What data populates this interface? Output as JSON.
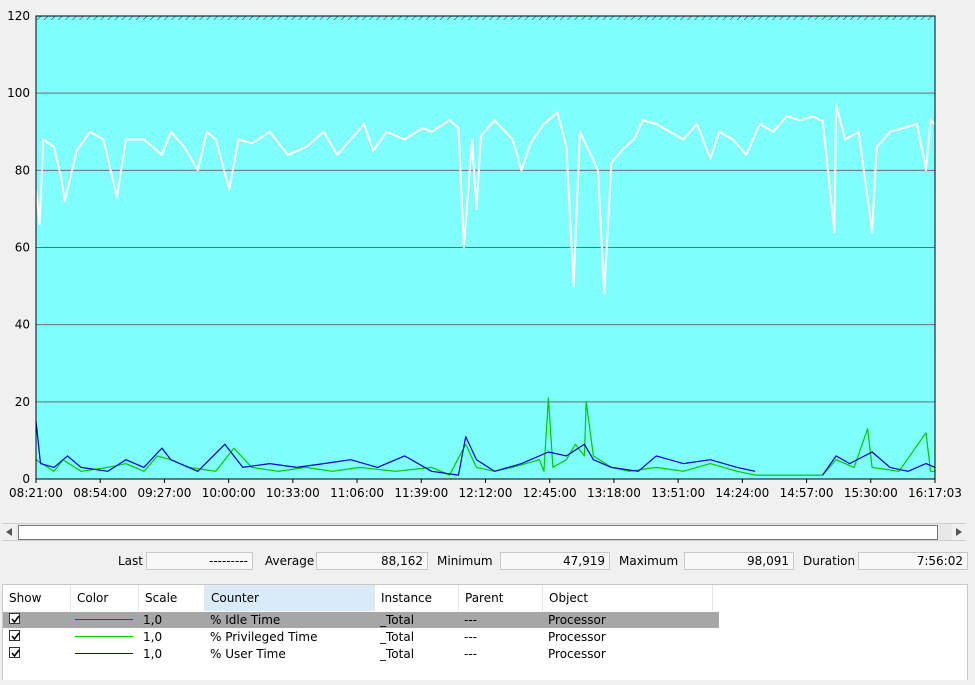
{
  "chart_data": {
    "type": "line",
    "ylim": [
      0,
      120
    ],
    "y_ticks": [
      "0",
      "20",
      "40",
      "60",
      "80",
      "100",
      "120"
    ],
    "x_ticks": [
      "08:21:00",
      "08:54:00",
      "09:27:00",
      "10:00:00",
      "10:33:00",
      "11:06:00",
      "11:39:00",
      "12:12:00",
      "12:45:00",
      "13:18:00",
      "13:51:00",
      "14:24:00",
      "14:57:00",
      "15:30:00",
      "16:17:03"
    ],
    "x_range": [
      "08:21:00",
      "16:17:03"
    ],
    "background": "#80ffff",
    "grid": true,
    "series": [
      {
        "name": "% Idle Time",
        "color": "#ffffff",
        "points": [
          [
            0,
            75
          ],
          [
            0.004,
            66
          ],
          [
            0.008,
            88
          ],
          [
            0.02,
            86
          ],
          [
            0.028,
            78
          ],
          [
            0.032,
            72
          ],
          [
            0.045,
            85
          ],
          [
            0.06,
            90
          ],
          [
            0.075,
            88
          ],
          [
            0.09,
            73
          ],
          [
            0.1,
            88
          ],
          [
            0.12,
            88
          ],
          [
            0.14,
            84
          ],
          [
            0.15,
            90
          ],
          [
            0.165,
            86
          ],
          [
            0.18,
            80
          ],
          [
            0.19,
            90
          ],
          [
            0.2,
            88
          ],
          [
            0.215,
            75
          ],
          [
            0.225,
            88
          ],
          [
            0.24,
            87
          ],
          [
            0.26,
            90
          ],
          [
            0.28,
            84
          ],
          [
            0.3,
            86
          ],
          [
            0.32,
            90
          ],
          [
            0.335,
            84
          ],
          [
            0.35,
            88
          ],
          [
            0.365,
            92
          ],
          [
            0.375,
            85
          ],
          [
            0.39,
            90
          ],
          [
            0.41,
            88
          ],
          [
            0.43,
            91
          ],
          [
            0.44,
            90
          ],
          [
            0.46,
            93
          ],
          [
            0.47,
            91
          ],
          [
            0.476,
            60
          ],
          [
            0.485,
            88
          ],
          [
            0.49,
            70
          ],
          [
            0.495,
            89
          ],
          [
            0.51,
            93
          ],
          [
            0.53,
            88
          ],
          [
            0.54,
            80
          ],
          [
            0.55,
            87
          ],
          [
            0.565,
            92
          ],
          [
            0.58,
            95
          ],
          [
            0.59,
            86
          ],
          [
            0.598,
            50
          ],
          [
            0.605,
            90
          ],
          [
            0.615,
            85
          ],
          [
            0.625,
            80
          ],
          [
            0.632,
            48
          ],
          [
            0.64,
            82
          ],
          [
            0.655,
            86
          ],
          [
            0.665,
            88
          ],
          [
            0.675,
            93
          ],
          [
            0.69,
            92
          ],
          [
            0.705,
            90
          ],
          [
            0.72,
            88
          ],
          [
            0.735,
            92
          ],
          [
            0.75,
            83
          ],
          [
            0.76,
            90
          ],
          [
            0.775,
            88
          ],
          [
            0.79,
            84
          ],
          [
            0.805,
            92
          ],
          [
            0.82,
            90
          ],
          [
            0.835,
            94
          ],
          [
            0.85,
            93
          ],
          [
            0.865,
            94
          ],
          [
            0.872,
            93
          ],
          [
            0.875,
            93
          ],
          [
            0.888,
            64
          ],
          [
            0.89,
            97
          ],
          [
            0.9,
            88
          ],
          [
            0.915,
            90
          ],
          [
            0.93,
            64
          ],
          [
            0.935,
            86
          ],
          [
            0.95,
            90
          ],
          [
            0.965,
            91
          ],
          [
            0.98,
            92
          ],
          [
            0.99,
            80
          ],
          [
            0.995,
            93
          ],
          [
            1,
            92
          ]
        ],
        "gaps": [
          [
            0.465,
            0.47
          ],
          [
            0.875,
            0.888
          ]
        ]
      },
      {
        "name": "% Privileged Time",
        "color": "#00c800",
        "points": [
          [
            0,
            5
          ],
          [
            0.02,
            2
          ],
          [
            0.03,
            5
          ],
          [
            0.05,
            2
          ],
          [
            0.08,
            3
          ],
          [
            0.1,
            4
          ],
          [
            0.12,
            2
          ],
          [
            0.135,
            6
          ],
          [
            0.15,
            5
          ],
          [
            0.17,
            3
          ],
          [
            0.2,
            2
          ],
          [
            0.22,
            8
          ],
          [
            0.24,
            3
          ],
          [
            0.27,
            2
          ],
          [
            0.3,
            3
          ],
          [
            0.33,
            2
          ],
          [
            0.36,
            3
          ],
          [
            0.4,
            2
          ],
          [
            0.44,
            3
          ],
          [
            0.46,
            1
          ],
          [
            0.478,
            9
          ],
          [
            0.49,
            3
          ],
          [
            0.51,
            2
          ],
          [
            0.53,
            3
          ],
          [
            0.56,
            5
          ],
          [
            0.565,
            2
          ],
          [
            0.57,
            21
          ],
          [
            0.575,
            3
          ],
          [
            0.59,
            5
          ],
          [
            0.6,
            9
          ],
          [
            0.61,
            6
          ],
          [
            0.612,
            20
          ],
          [
            0.62,
            6
          ],
          [
            0.64,
            3
          ],
          [
            0.66,
            2
          ],
          [
            0.69,
            3
          ],
          [
            0.72,
            2
          ],
          [
            0.75,
            4
          ],
          [
            0.78,
            2
          ],
          [
            0.8,
            1
          ],
          [
            0.83,
            1
          ],
          [
            0.875,
            1
          ],
          [
            0.89,
            5
          ],
          [
            0.91,
            3
          ],
          [
            0.925,
            13
          ],
          [
            0.93,
            3
          ],
          [
            0.96,
            2
          ],
          [
            0.99,
            12
          ],
          [
            0.995,
            2
          ],
          [
            1,
            2
          ]
        ]
      },
      {
        "name": "% User Time",
        "color": "#0000c8",
        "points": [
          [
            0,
            15
          ],
          [
            0.005,
            4
          ],
          [
            0.02,
            3
          ],
          [
            0.035,
            6
          ],
          [
            0.05,
            3
          ],
          [
            0.08,
            2
          ],
          [
            0.1,
            5
          ],
          [
            0.12,
            3
          ],
          [
            0.14,
            8
          ],
          [
            0.15,
            5
          ],
          [
            0.18,
            2
          ],
          [
            0.21,
            9
          ],
          [
            0.23,
            3
          ],
          [
            0.26,
            4
          ],
          [
            0.29,
            3
          ],
          [
            0.32,
            4
          ],
          [
            0.35,
            5
          ],
          [
            0.38,
            3
          ],
          [
            0.41,
            6
          ],
          [
            0.44,
            2
          ],
          [
            0.47,
            1
          ],
          [
            0.478,
            11
          ],
          [
            0.49,
            5
          ],
          [
            0.51,
            2
          ],
          [
            0.54,
            4
          ],
          [
            0.57,
            7
          ],
          [
            0.59,
            6
          ],
          [
            0.61,
            9
          ],
          [
            0.62,
            5
          ],
          [
            0.64,
            3
          ],
          [
            0.67,
            2
          ],
          [
            0.69,
            6
          ],
          [
            0.72,
            4
          ],
          [
            0.75,
            5
          ],
          [
            0.78,
            3
          ],
          [
            0.8,
            2
          ],
          [
            0.83,
            1
          ],
          [
            0.875,
            1
          ],
          [
            0.89,
            6
          ],
          [
            0.905,
            4
          ],
          [
            0.93,
            7
          ],
          [
            0.95,
            3
          ],
          [
            0.97,
            2
          ],
          [
            0.99,
            4
          ],
          [
            1,
            3
          ]
        ],
        "gaps": [
          [
            0.8,
            0.875
          ]
        ]
      }
    ]
  },
  "scrollbar": {
    "left_arrow": "◂",
    "right_arrow": "▸"
  },
  "stats": {
    "last_label": "Last",
    "last_value": "---------",
    "average_label": "Average",
    "average_value": "88,162",
    "minimum_label": "Minimum",
    "minimum_value": "47,919",
    "maximum_label": "Maximum",
    "maximum_value": "98,091",
    "duration_label": "Duration",
    "duration_value": "7:56:02"
  },
  "legend": {
    "headers": {
      "show": "Show",
      "color": "Color",
      "scale": "Scale",
      "counter": "Counter",
      "instance": "Instance",
      "parent": "Parent",
      "object": "Object"
    },
    "rows": [
      {
        "checked": true,
        "color": "#e00000",
        "scale": "1,0",
        "counter": "% Idle Time",
        "instance": "_Total",
        "parent": "---",
        "object": "Processor",
        "selected": true
      },
      {
        "checked": true,
        "color": "#00c800",
        "scale": "1,0",
        "counter": "% Privileged Time",
        "instance": "_Total",
        "parent": "---",
        "object": "Processor",
        "selected": false
      },
      {
        "checked": true,
        "color": "#0000c8",
        "scale": "1,0",
        "counter": "% User Time",
        "instance": "_Total",
        "parent": "---",
        "object": "Processor",
        "selected": false
      }
    ]
  }
}
